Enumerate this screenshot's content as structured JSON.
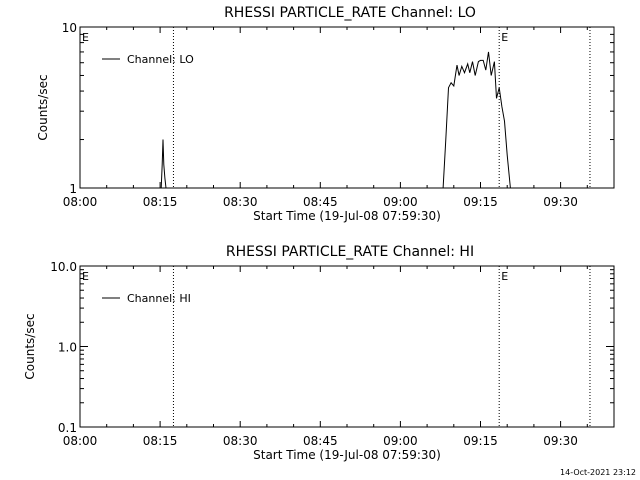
{
  "chart_data": [
    {
      "type": "line",
      "title": "RHESSI PARTICLE_RATE Channel: LO",
      "xlabel": "Start Time (19-Jul-08 07:59:30)",
      "ylabel": "Counts/sec",
      "yscale": "log",
      "ylim": [
        1,
        10
      ],
      "y_tick_labels": [
        "1",
        "10"
      ],
      "xlim_minutes_after_0800": [
        0,
        100
      ],
      "x_tick_labels": [
        "08:00",
        "08:15",
        "08:30",
        "08:45",
        "09:00",
        "09:15",
        "09:30"
      ],
      "grid": false,
      "legend": "top-left",
      "series": [
        {
          "name": "Channel: LO",
          "x": [
            15.2,
            15.4,
            15.55,
            15.7,
            15.9,
            16.1,
            16.3,
            68.0,
            68.5,
            69.0,
            69.5,
            70.0,
            70.6,
            71.0,
            71.5,
            72.0,
            72.6,
            73.0,
            73.5,
            74.0,
            74.6,
            75.0,
            75.5,
            76.0,
            76.5,
            77.0,
            77.6,
            78.0,
            78.5,
            79.0,
            79.5,
            80.0,
            80.6,
            81.0
          ],
          "y": [
            1,
            1.4,
            2.0,
            1.4,
            1.15,
            1,
            1,
            1,
            2.0,
            4.2,
            4.5,
            4.3,
            5.8,
            5.0,
            5.7,
            5.2,
            5.9,
            5.2,
            6.1,
            5.0,
            6.1,
            6.2,
            6.2,
            5.4,
            7.0,
            5.0,
            6.1,
            3.6,
            4.2,
            3.2,
            2.6,
            1.6,
            1.0,
            1.0
          ]
        }
      ],
      "vertical_lines_minutes_after_0800": [
        17.5,
        78.5,
        95.5
      ],
      "markers": [
        {
          "label": "E",
          "x": 0
        },
        {
          "label": "E",
          "x": 78.5
        }
      ]
    },
    {
      "type": "line",
      "title": "RHESSI PARTICLE_RATE Channel: HI",
      "xlabel": "Start Time (19-Jul-08 07:59:30)",
      "ylabel": "Counts/sec",
      "yscale": "log",
      "ylim": [
        0.1,
        10
      ],
      "y_tick_labels": [
        "0.1",
        "1.0",
        "10.0"
      ],
      "xlim_minutes_after_0800": [
        0,
        100
      ],
      "x_tick_labels": [
        "08:00",
        "08:15",
        "08:30",
        "08:45",
        "09:00",
        "09:15",
        "09:30"
      ],
      "grid": false,
      "legend": "top-left",
      "series": [
        {
          "name": "Channel: HI",
          "x": [],
          "y": []
        }
      ],
      "vertical_lines_minutes_after_0800": [
        17.5,
        78.5,
        95.5
      ],
      "markers": [
        {
          "label": "E",
          "x": 0
        },
        {
          "label": "E",
          "x": 78.5
        }
      ]
    }
  ],
  "footer": {
    "timestamp": "14-Oct-2021 23:12"
  }
}
